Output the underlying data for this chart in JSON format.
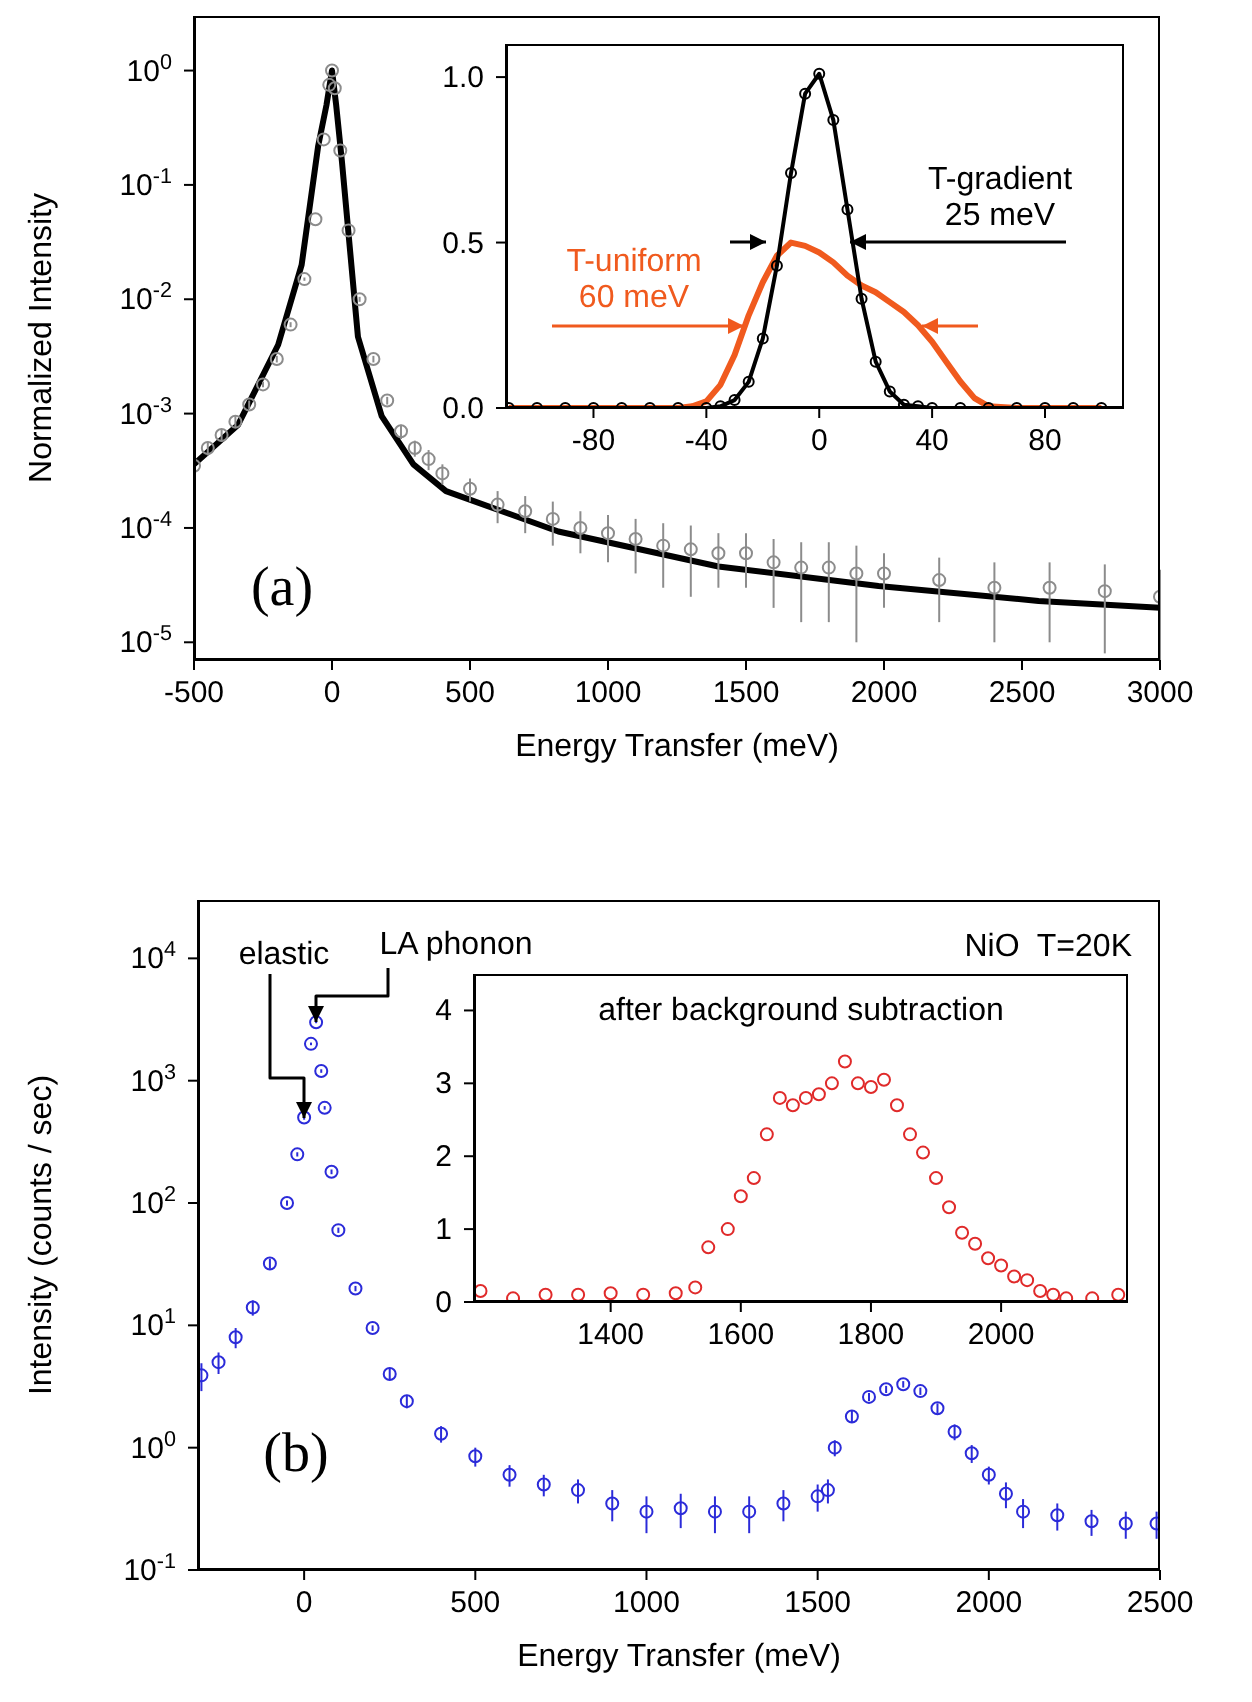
{
  "chart_data": [
    {
      "type": "scatter",
      "xlabel": "Energy Transfer   (meV)",
      "ylabel": "Normalized Intensity",
      "annotations": [
        "(a)"
      ],
      "log": "y",
      "xlim": [
        -500,
        3000
      ],
      "xticks": [
        -500,
        0,
        500,
        1000,
        1500,
        2000,
        2500,
        3000
      ],
      "ylim": [
        7e-06,
        3
      ],
      "yticks": [
        {
          "value": 1e-05,
          "label": "10$^{-5}$"
        },
        {
          "value": 0.0001,
          "label": "10$^{-4}$"
        },
        {
          "value": 0.001,
          "label": "10$^{-3}$"
        },
        {
          "value": 0.01,
          "label": "10$^{-2}$"
        },
        {
          "value": 0.1,
          "label": "10$^{-1}$"
        },
        {
          "value": 1,
          "label": "10$^{0}$"
        }
      ],
      "marker": "circle",
      "series": [
        {
          "color": "#8c8c8c",
          "x": [
            -500,
            -450,
            -400,
            -350,
            -300,
            -250,
            -200,
            -150,
            -100,
            -60,
            -30,
            -10,
            0,
            10,
            30,
            60,
            100,
            150,
            200,
            250,
            300,
            350,
            400,
            500,
            600,
            700,
            800,
            900,
            1000,
            1100,
            1200,
            1300,
            1400,
            1500,
            1600,
            1700,
            1800,
            1900,
            2000,
            2200,
            2400,
            2600,
            2800,
            3000
          ],
          "values": [
            0.00035,
            0.0005,
            0.00065,
            0.00085,
            0.0012,
            0.0018,
            0.003,
            0.006,
            0.015,
            0.05,
            0.25,
            0.75,
            1,
            0.7,
            0.2,
            0.04,
            0.01,
            0.003,
            0.0013,
            0.0007,
            0.0005,
            0.0004,
            0.0003,
            0.00022,
            0.00016,
            0.00014,
            0.00012,
            0.0001,
            9e-05,
            8e-05,
            7e-05,
            6.5e-05,
            6e-05,
            6e-05,
            5e-05,
            4.5e-05,
            4.5e-05,
            4e-05,
            4e-05,
            3.5e-05,
            3e-05,
            3e-05,
            2.8e-05,
            2.5e-05
          ],
          "errors": [
            5e-05,
            7e-05,
            8e-05,
            0.0001,
            0.0001,
            0.0001,
            0.0002,
            0.0003,
            0.0005,
            null,
            null,
            null,
            null,
            null,
            null,
            null,
            0.0005,
            0.0002,
            0.0001,
            0.0001,
            8e-05,
            8e-05,
            6e-05,
            5e-05,
            5e-05,
            5e-05,
            5e-05,
            4e-05,
            4e-05,
            4e-05,
            4e-05,
            4e-05,
            3e-05,
            3e-05,
            3e-05,
            3e-05,
            3e-05,
            3e-05,
            2e-05,
            2e-05,
            2e-05,
            2e-05,
            2e-05,
            1.8e-05
          ]
        },
        {
          "type": "line",
          "marker": "none",
          "color": "#000000",
          "x": [
            -500,
            -340,
            -195,
            -110,
            -50,
            -20,
            0,
            15,
            36,
            94,
            180,
            295,
            413,
            820,
            1400,
            1980,
            2560,
            3000
          ],
          "values": [
            0.00036,
            0.0008,
            0.004,
            0.02,
            0.22,
            0.5,
            1,
            0.5,
            0.16,
            0.0047,
            0.00095,
            0.00036,
            0.00021,
            9.3e-05,
            4.6e-05,
            3.1e-05,
            2.3e-05,
            2e-05
          ]
        }
      ]
    },
    {
      "type": "line",
      "annotations": [
        {
          "text": "T-gradient\n25 meV",
          "x": 11,
          "y": 0.5
        },
        {
          "text": "T-uniform\n60 meV",
          "x": -27,
          "y": 0.25
        }
      ],
      "xlim": [
        -111,
        108
      ],
      "xticks": [
        -80,
        -40,
        0,
        40,
        80
      ],
      "ylim": [
        0,
        1.1
      ],
      "yticks": [
        {
          "value": 0,
          "label": "0.0"
        },
        0.5,
        {
          "value": 1,
          "label": "1.0"
        }
      ],
      "marker": "circle",
      "series": [
        {
          "color": "#000000",
          "x": [
            -110,
            -100,
            -90,
            -80,
            -70,
            -60,
            -50,
            -40,
            -35,
            -30,
            -25,
            -20,
            -15,
            -10,
            -5,
            0,
            5,
            10,
            15,
            20,
            25,
            30,
            35,
            40,
            50,
            60,
            70,
            80,
            90,
            100
          ],
          "values": [
            0,
            0,
            0,
            0,
            0,
            0,
            0,
            0,
            0.005,
            0.024,
            0.079,
            0.21,
            0.43,
            0.71,
            0.95,
            1.01,
            0.87,
            0.6,
            0.33,
            0.14,
            0.05,
            0.01,
            0.005,
            0,
            0,
            0,
            0,
            0,
            0,
            0
          ]
        },
        {
          "color": "#f05a1e",
          "marker": "none",
          "x": [
            -110,
            -100,
            -90,
            -80,
            -70,
            -60,
            -50,
            -45,
            -40,
            -35,
            -30,
            -25,
            -20,
            -15,
            -10,
            -5,
            0,
            5,
            10,
            15,
            20,
            25,
            30,
            35,
            40,
            45,
            50,
            55,
            60,
            70,
            80,
            90,
            100
          ],
          "values": [
            0,
            0,
            0,
            0,
            0,
            0,
            0,
            0.005,
            0.02,
            0.07,
            0.16,
            0.28,
            0.38,
            0.46,
            0.5,
            0.49,
            0.47,
            0.44,
            0.4,
            0.37,
            0.35,
            0.32,
            0.29,
            0.25,
            0.2,
            0.14,
            0.08,
            0.03,
            0.005,
            0,
            0,
            0,
            0
          ]
        }
      ]
    },
    {
      "type": "scatter",
      "xlabel": "Energy Transfer   (meV)",
      "ylabel": "Intensity   (counts / sec)",
      "annotations": [
        {
          "text": "elastic",
          "x": 0,
          "y": 500
        },
        {
          "text": "LA phonon",
          "x": 35,
          "y": 3000
        },
        "NiO  T=20K",
        "(b)"
      ],
      "log": "y",
      "xlim": [
        -310,
        2500
      ],
      "xticks": [
        0,
        500,
        1000,
        1500,
        2000,
        2500
      ],
      "ylim": [
        0.1,
        30000
      ],
      "yticks": [
        {
          "value": 0.1,
          "label": "10$^{-1}$"
        },
        {
          "value": 1,
          "label": "10$^{0}$"
        },
        {
          "value": 10,
          "label": "10$^{1}$"
        },
        {
          "value": 100,
          "label": "10$^{2}$"
        },
        {
          "value": 1000,
          "label": "10$^{3}$"
        },
        {
          "value": 10000,
          "label": "10$^{4}$"
        }
      ],
      "marker": "circle",
      "series": [
        {
          "color": "#2b2bd9",
          "x": [
            -300,
            -250,
            -200,
            -150,
            -100,
            -50,
            -20,
            0,
            20,
            35,
            50,
            60,
            80,
            100,
            150,
            200,
            250,
            300,
            400,
            500,
            600,
            700,
            800,
            900,
            1000,
            1100,
            1200,
            1300,
            1400,
            1500,
            1530,
            1550,
            1600,
            1650,
            1700,
            1750,
            1800,
            1850,
            1900,
            1950,
            2000,
            2050,
            2100,
            2200,
            2300,
            2400,
            2490
          ],
          "values": [
            3.9,
            5,
            8,
            14,
            32,
            100,
            250,
            500,
            2000,
            3000,
            1200,
            600,
            180,
            60,
            20,
            9.5,
            4,
            2.4,
            1.3,
            0.85,
            0.6,
            0.5,
            0.45,
            0.35,
            0.3,
            0.32,
            0.3,
            0.3,
            0.35,
            0.4,
            0.45,
            1,
            1.8,
            2.6,
            3,
            3.3,
            2.9,
            2.1,
            1.35,
            0.9,
            0.6,
            0.42,
            0.3,
            0.28,
            0.25,
            0.24,
            0.24
          ],
          "errors": [
            1,
            1,
            1.5,
            2,
            3,
            5,
            10,
            20,
            50,
            50,
            40,
            20,
            8,
            3,
            1,
            0.5,
            0.4,
            0.3,
            0.2,
            0.15,
            0.12,
            0.1,
            0.1,
            0.1,
            0.1,
            0.1,
            0.1,
            0.1,
            0.1,
            0.1,
            0.1,
            0.15,
            0.2,
            0.2,
            0.2,
            0.2,
            0.2,
            0.2,
            0.2,
            0.15,
            0.1,
            0.1,
            0.08,
            0.07,
            0.06,
            0.06,
            0.06
          ]
        }
      ]
    },
    {
      "type": "scatter",
      "title": "after background subtraction",
      "xlim": [
        1190,
        2195
      ],
      "xticks": [
        1400,
        1600,
        1800,
        2000
      ],
      "ylim": [
        0,
        4.5
      ],
      "yticks": [
        0,
        1,
        2,
        3,
        4
      ],
      "marker": "circle",
      "series": [
        {
          "color": "#e02a2a",
          "x": [
            1200,
            1250,
            1300,
            1350,
            1400,
            1450,
            1500,
            1530,
            1550,
            1580,
            1600,
            1620,
            1640,
            1660,
            1680,
            1700,
            1720,
            1740,
            1760,
            1780,
            1800,
            1820,
            1840,
            1860,
            1880,
            1900,
            1920,
            1940,
            1960,
            1980,
            2000,
            2020,
            2040,
            2060,
            2080,
            2100,
            2140,
            2180
          ],
          "values": [
            0.15,
            0.05,
            0.1,
            0.1,
            0.12,
            0.1,
            0.12,
            0.2,
            0.75,
            1.0,
            1.45,
            1.7,
            2.3,
            2.8,
            2.7,
            2.8,
            2.85,
            3.0,
            3.3,
            3.0,
            2.95,
            3.05,
            2.7,
            2.3,
            2.05,
            1.7,
            1.3,
            0.95,
            0.8,
            0.6,
            0.5,
            0.35,
            0.3,
            0.15,
            0.1,
            0.05,
            0.05,
            0.1
          ]
        }
      ]
    }
  ]
}
